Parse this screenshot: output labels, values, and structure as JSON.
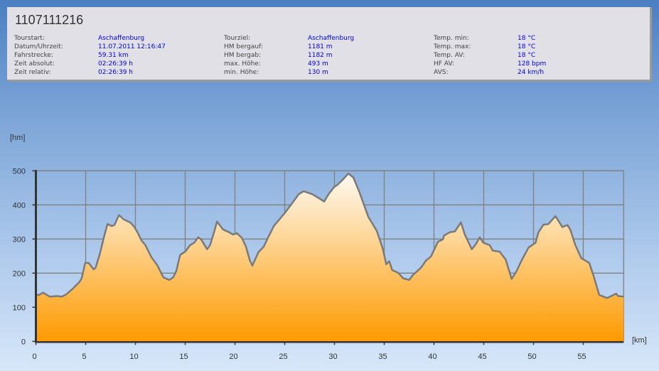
{
  "header": {
    "title": "1107111216",
    "columns": [
      [
        {
          "label": "Tourstart:",
          "value": "Aschaffenburg"
        },
        {
          "label": "Datum/Uhrzeit:",
          "value": "11.07.2011 12:16:47"
        },
        {
          "label": "Fahrstrecke:",
          "value": "59.31 km"
        },
        {
          "label": "Zeit absolut:",
          "value": "02:26:39 h"
        },
        {
          "label": "Zeit relativ:",
          "value": "02:26:39 h"
        }
      ],
      [
        {
          "label": "Tourziel:",
          "value": "Aschaffenburg"
        },
        {
          "label": "HM bergauf:",
          "value": "1181 m"
        },
        {
          "label": "HM bergab:",
          "value": "1182 m"
        },
        {
          "label": "max. Höhe:",
          "value": "493 m"
        },
        {
          "label": "min. Höhe:",
          "value": "130 m"
        }
      ],
      [
        {
          "label": "Temp. min:",
          "value": "18 °C"
        },
        {
          "label": "Temp. max:",
          "value": "18 °C"
        },
        {
          "label": "Temp. AV:",
          "value": "18 °C"
        },
        {
          "label": "HF AV:",
          "value": "128 bpm"
        },
        {
          "label": "AVS:",
          "value": "24 km/h"
        }
      ]
    ]
  },
  "chart_data": {
    "type": "area",
    "xlabel": "[km]",
    "ylabel": "[hm]",
    "xlim": [
      0,
      59.06
    ],
    "ylim": [
      0,
      500
    ],
    "xticks": [
      0,
      5,
      10,
      15,
      20,
      25,
      30,
      35,
      40,
      45,
      50,
      55
    ],
    "yticks": [
      0,
      100,
      200,
      300,
      400,
      500
    ],
    "grid": true,
    "colors": {
      "fill_top": "#fffaf2",
      "fill_bottom": "#ff9a00",
      "line": "#7a7a7a",
      "grid": "#808080"
    },
    "x": [
      0,
      0.3,
      0.73,
      1.4,
      2.1,
      2.6,
      3.06,
      3.65,
      4.37,
      4.6,
      4.96,
      5.3,
      5.8,
      6.0,
      6.4,
      6.9,
      7.2,
      7.6,
      7.9,
      8.1,
      8.35,
      8.8,
      9.5,
      9.85,
      10.2,
      10.6,
      11.0,
      11.6,
      12.2,
      12.8,
      13.4,
      13.8,
      14.1,
      14.5,
      15.0,
      15.5,
      15.9,
      16.3,
      16.6,
      17.2,
      17.5,
      17.9,
      18.2,
      18.8,
      19.4,
      19.8,
      20.2,
      20.7,
      21.1,
      21.5,
      21.75,
      22.35,
      22.9,
      23.3,
      23.9,
      25.0,
      25.7,
      26.4,
      26.9,
      27.8,
      28.97,
      29.4,
      29.96,
      30.3,
      30.8,
      31.4,
      31.9,
      32.5,
      33.0,
      33.4,
      34.25,
      34.85,
      35.2,
      35.5,
      35.8,
      36.4,
      36.9,
      37.5,
      37.9,
      38.7,
      39.2,
      39.7,
      40.4,
      40.9,
      41.0,
      41.6,
      42.1,
      42.7,
      43.1,
      43.8,
      44.2,
      44.6,
      44.96,
      45.6,
      45.9,
      46.6,
      47.2,
      47.6,
      47.8,
      48.3,
      48.8,
      49.5,
      50.2,
      50.5,
      51.0,
      51.5,
      52.2,
      52.9,
      53.4,
      53.7,
      54.2,
      54.8,
      55.6,
      56.0,
      56.6,
      57.4,
      58.3,
      58.5,
      59.06
    ],
    "y": [
      136,
      136,
      143,
      131,
      133,
      131,
      138,
      153,
      174,
      185,
      230,
      230,
      211,
      216,
      254,
      313,
      344,
      338,
      341,
      355,
      370,
      358,
      348,
      337,
      320,
      296,
      282,
      247,
      223,
      188,
      180,
      188,
      206,
      254,
      263,
      282,
      289,
      305,
      299,
      270,
      282,
      320,
      351,
      328,
      320,
      313,
      317,
      303,
      278,
      237,
      222,
      261,
      278,
      303,
      338,
      376,
      403,
      431,
      440,
      431,
      410,
      431,
      452,
      459,
      473,
      492,
      480,
      438,
      397,
      365,
      324,
      272,
      226,
      235,
      209,
      201,
      185,
      180,
      195,
      216,
      237,
      249,
      292,
      299,
      310,
      320,
      322,
      349,
      313,
      270,
      285,
      305,
      289,
      282,
      266,
      263,
      240,
      202,
      183,
      206,
      237,
      275,
      289,
      320,
      342,
      344,
      367,
      335,
      341,
      327,
      282,
      244,
      230,
      195,
      136,
      127,
      140,
      133,
      131
    ]
  }
}
